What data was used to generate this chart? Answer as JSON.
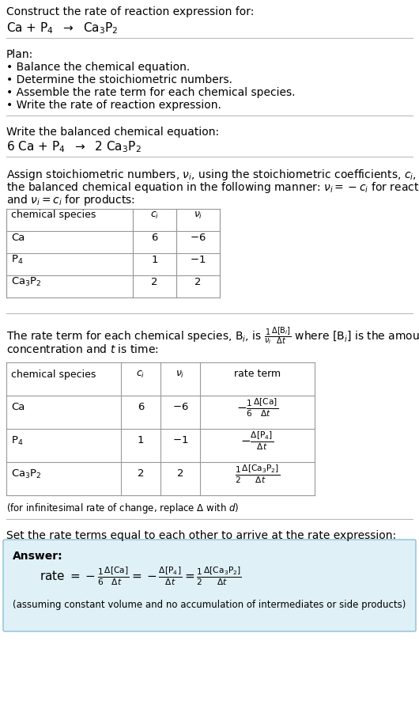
{
  "title_line1": "Construct the rate of reaction expression for:",
  "title_line2_parts": [
    "Ca + P",
    "4",
    "  →  Ca",
    "3",
    "P",
    "2"
  ],
  "plan_header": "Plan:",
  "plan_items": [
    "• Balance the chemical equation.",
    "• Determine the stoichiometric numbers.",
    "• Assemble the rate term for each chemical species.",
    "• Write the rate of reaction expression."
  ],
  "balanced_header": "Write the balanced chemical equation:",
  "balanced_eq": "6 Ca + P$_4$  $\\rightarrow$  2 Ca$_3$P$_2$",
  "assign_text": [
    "Assign stoichiometric numbers, $\\nu_i$, using the stoichiometric coefficients, $c_i$, from",
    "the balanced chemical equation in the following manner: $\\nu_i = -c_i$ for reactants",
    "and $\\nu_i = c_i$ for products:"
  ],
  "table1_headers": [
    "chemical species",
    "$c_i$",
    "$\\nu_i$"
  ],
  "table1_rows": [
    [
      "Ca",
      "6",
      "$-$6"
    ],
    [
      "P$_4$",
      "1",
      "$-$1"
    ],
    [
      "Ca$_3$P$_2$",
      "2",
      "2"
    ]
  ],
  "rate_text": [
    "The rate term for each chemical species, B$_i$, is $\\frac{1}{\\nu_i}\\frac{\\Delta[{\\rm B}_i]}{\\Delta t}$ where [B$_i$] is the amount",
    "concentration and $t$ is time:"
  ],
  "table2_headers": [
    "chemical species",
    "$c_i$",
    "$\\nu_i$",
    "rate term"
  ],
  "table2_rows": [
    [
      "Ca",
      "6",
      "$-$6",
      "$-\\frac{1}{6}\\frac{\\Delta[{\\rm Ca}]}{\\Delta t}$"
    ],
    [
      "P$_4$",
      "1",
      "$-$1",
      "$-\\frac{\\Delta[{\\rm P_4}]}{\\Delta t}$"
    ],
    [
      "Ca$_3$P$_2$",
      "2",
      "2",
      "$\\frac{1}{2}\\frac{\\Delta[{\\rm Ca_3P_2}]}{\\Delta t}$"
    ]
  ],
  "infinitesimal_note": "(for infinitesimal rate of change, replace $\\Delta$ with $d$)",
  "set_equal_text": "Set the rate terms equal to each other to arrive at the rate expression:",
  "answer_label": "Answer:",
  "answer_eq": "rate $= -\\frac{1}{6}\\frac{\\Delta[{\\rm Ca}]}{\\Delta t} = -\\frac{\\Delta[{\\rm P_4}]}{\\Delta t} = \\frac{1}{2}\\frac{\\Delta[{\\rm Ca_3P_2}]}{\\Delta t}$",
  "answer_note": "(assuming constant volume and no accumulation of intermediates or side products)",
  "answer_box_color": "#dff0f7",
  "answer_box_border": "#8bbfd4",
  "bg_color": "#ffffff",
  "text_color": "#000000",
  "line_color": "#bbbbbb",
  "table_line_color": "#999999"
}
